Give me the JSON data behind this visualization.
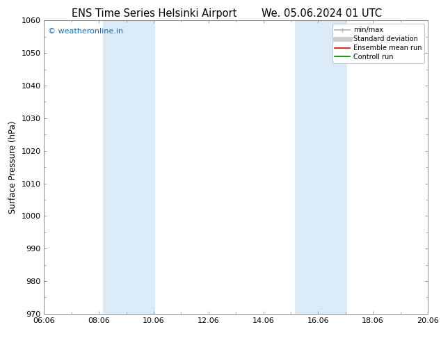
{
  "title_left": "ENS Time Series Helsinki Airport",
  "title_right": "We. 05.06.2024 01 UTC",
  "ylabel": "Surface Pressure (hPa)",
  "ylim": [
    970,
    1060
  ],
  "yticks": [
    970,
    980,
    990,
    1000,
    1010,
    1020,
    1030,
    1040,
    1050,
    1060
  ],
  "xlim_start": 0,
  "xlim_end": 14,
  "xtick_labels": [
    "06.06",
    "08.06",
    "10.06",
    "12.06",
    "14.06",
    "16.06",
    "18.06",
    "20.06"
  ],
  "xtick_positions": [
    0,
    2,
    4,
    6,
    8,
    10,
    12,
    14
  ],
  "shaded_bands": [
    {
      "xmin": 2.15,
      "xmax": 4.05
    },
    {
      "xmin": 9.15,
      "xmax": 11.05
    }
  ],
  "shade_color": "#daeaf7",
  "background_color": "#ffffff",
  "plot_bg_color": "#ffffff",
  "watermark": "© weatheronline.in",
  "watermark_color": "#1a6bad",
  "legend_items": [
    {
      "label": "min/max",
      "color": "#b0b0b0",
      "lw": 1.2,
      "ls": "-"
    },
    {
      "label": "Standard deviation",
      "color": "#cccccc",
      "lw": 5,
      "ls": "-"
    },
    {
      "label": "Ensemble mean run",
      "color": "#dd0000",
      "lw": 1.2,
      "ls": "-"
    },
    {
      "label": "Controll run",
      "color": "#008000",
      "lw": 1.2,
      "ls": "-"
    }
  ],
  "title_fontsize": 10.5,
  "tick_fontsize": 8,
  "ylabel_fontsize": 8.5,
  "spine_color": "#888888",
  "watermark_fontsize": 8
}
